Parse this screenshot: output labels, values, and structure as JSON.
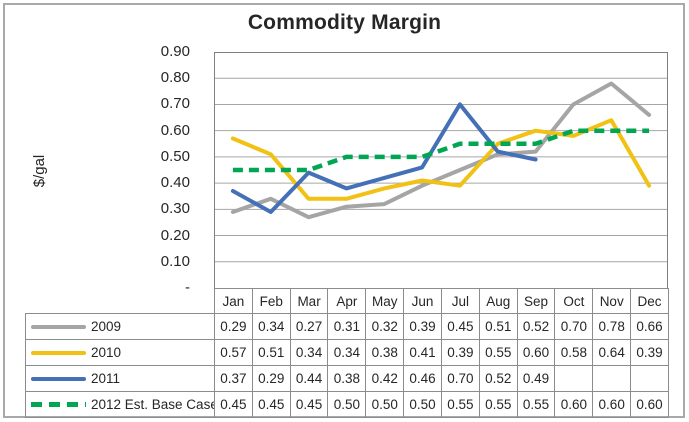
{
  "chart_data": {
    "type": "line",
    "title": "Commodity Margin",
    "ylabel": "$/gal",
    "xlabel": "",
    "categories": [
      "Jan",
      "Feb",
      "Mar",
      "Apr",
      "May",
      "Jun",
      "Jul",
      "Aug",
      "Sep",
      "Oct",
      "Nov",
      "Dec"
    ],
    "series": [
      {
        "name": "2009",
        "color": "#A5A5A5",
        "style": "solid",
        "values": [
          0.29,
          0.34,
          0.27,
          0.31,
          0.32,
          0.39,
          0.45,
          0.51,
          0.52,
          0.7,
          0.78,
          0.66
        ]
      },
      {
        "name": "2010",
        "color": "#F1C113",
        "style": "solid",
        "values": [
          0.57,
          0.51,
          0.34,
          0.34,
          0.38,
          0.41,
          0.39,
          0.55,
          0.6,
          0.58,
          0.64,
          0.39
        ]
      },
      {
        "name": "2011",
        "color": "#4470B7",
        "style": "solid",
        "values": [
          0.37,
          0.29,
          0.44,
          0.38,
          0.42,
          0.46,
          0.7,
          0.52,
          0.49,
          null,
          null,
          null
        ]
      },
      {
        "name": "2012 Est. Base Case",
        "color": "#00A651",
        "style": "dashed",
        "values": [
          0.45,
          0.45,
          0.45,
          0.5,
          0.5,
          0.5,
          0.55,
          0.55,
          0.55,
          0.6,
          0.6,
          0.6
        ]
      }
    ],
    "ylim": [
      0,
      0.9
    ],
    "y_tick_step": 0.1,
    "y_tick_labels": [
      "0.90",
      "0.80",
      "0.70",
      "0.60",
      "0.50",
      "0.40",
      "0.30",
      "0.20",
      "0.10",
      "-"
    ],
    "grid": true,
    "legend_position": "data-table-left",
    "value_format": "0.00",
    "gridline_color": "#A6A6A6",
    "plot_border_color": "#808080",
    "table_border_color": "#8C8C8C",
    "text_color": "#262626"
  }
}
